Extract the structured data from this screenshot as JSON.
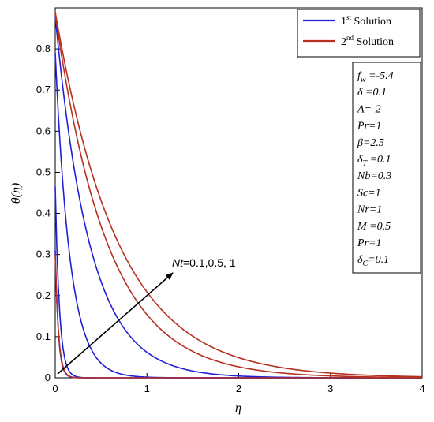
{
  "chart_data": {
    "type": "line",
    "xlabel": "η",
    "ylabel": "θ(η)",
    "xlim": [
      0,
      4
    ],
    "ylim": [
      0,
      0.9
    ],
    "x_ticks": [
      "0",
      "1",
      "2",
      "3",
      "4"
    ],
    "y_ticks": [
      "0",
      "0.1",
      "0.2",
      "0.3",
      "0.4",
      "0.5",
      "0.6",
      "0.7",
      "0.8"
    ],
    "legend": {
      "placement": "top-right",
      "entries": [
        {
          "sup_base": "1",
          "sup": "st",
          "rest": " Solution",
          "color": "#1f1fd6"
        },
        {
          "sup_base": "2",
          "sup": "nd",
          "rest": " Solution",
          "color": "#b5301f"
        }
      ]
    },
    "params": [
      "fw =-5.4",
      "δ =0.1",
      "A=-2",
      "Pr=1",
      "β=2.5",
      "δT =0.1",
      "Nb=0.3",
      "Sc=1",
      "Nr=1",
      "M =0.5",
      "Pr=1",
      "δC=0.1"
    ],
    "annotation": {
      "prefix": "Nt",
      "values": "=0.1,0.5, 1"
    },
    "series": [
      {
        "solution": "1st",
        "color": "#1f1fd6",
        "y0": 0.31,
        "k": 30,
        "x": [
          0,
          0.05,
          0.1,
          0.15,
          0.2,
          0.3,
          0.4
        ],
        "values": [
          0.31,
          0.069,
          0.015,
          0.003,
          0.001,
          0,
          0
        ]
      },
      {
        "solution": "1st",
        "color": "#1f1fd6",
        "y0": 0.465,
        "k": 22,
        "x": [
          0,
          0.05,
          0.1,
          0.15,
          0.2,
          0.3,
          0.5
        ],
        "values": [
          0.465,
          0.155,
          0.052,
          0.017,
          0.006,
          0.001,
          0
        ]
      },
      {
        "solution": "1st",
        "color": "#1f1fd6",
        "y0": 0.79,
        "k": 6.2,
        "x": [
          0,
          0.1,
          0.2,
          0.3,
          0.4,
          0.6,
          0.8,
          1.0
        ],
        "values": [
          0.79,
          0.425,
          0.228,
          0.123,
          0.066,
          0.019,
          0.006,
          0.002
        ]
      },
      {
        "solution": "1st",
        "color": "#1f1fd6",
        "y0": 0.88,
        "k": 2.65,
        "x": [
          0,
          0.25,
          0.5,
          0.75,
          1.0,
          1.5,
          2.0,
          2.5
        ],
        "values": [
          0.88,
          0.453,
          0.233,
          0.12,
          0.062,
          0.016,
          0.004,
          0.001
        ]
      },
      {
        "solution": "2nd",
        "color": "#b5301f",
        "y0": 0.3,
        "k": 28,
        "x": [
          0,
          0.05,
          0.1,
          0.15,
          0.2,
          0.3
        ],
        "values": [
          0.3,
          0.074,
          0.018,
          0.004,
          0.001,
          0
        ]
      },
      {
        "solution": "2nd",
        "color": "#b5301f",
        "y0": 0.885,
        "k": 1.75,
        "x": [
          0,
          0.5,
          1.0,
          1.5,
          2.0,
          2.5,
          3.0,
          4.0
        ],
        "values": [
          0.885,
          0.371,
          0.154,
          0.064,
          0.027,
          0.011,
          0.005,
          0.001
        ]
      },
      {
        "solution": "2nd",
        "color": "#b5301f",
        "y0": 0.89,
        "k": 1.45,
        "x": [
          0,
          0.5,
          1.0,
          1.5,
          2.0,
          2.5,
          3.0,
          4.0
        ],
        "values": [
          0.89,
          0.431,
          0.209,
          0.101,
          0.049,
          0.024,
          0.011,
          0.003
        ]
      }
    ]
  }
}
